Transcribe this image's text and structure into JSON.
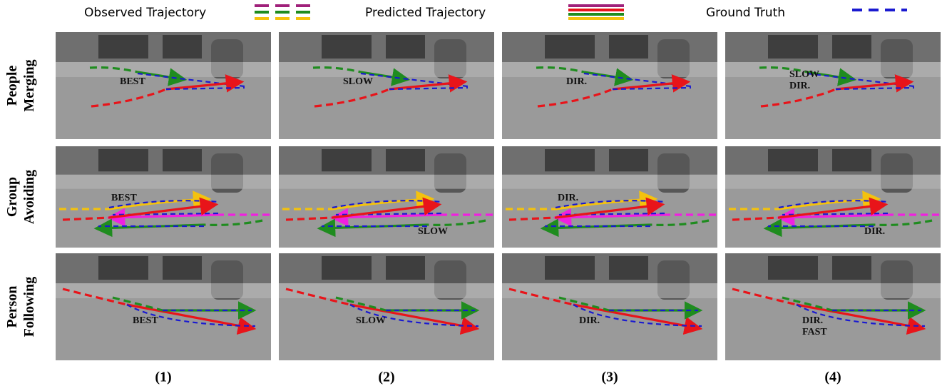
{
  "legend": [
    "Observed Trajectory",
    "Predicted Trajectory",
    "Ground Truth"
  ],
  "rows": [
    {
      "label": [
        "People",
        "Merging"
      ],
      "cells": [
        [
          "BEST"
        ],
        [
          "SLOW"
        ],
        [
          "DIR."
        ],
        [
          "SLOW",
          "DIR."
        ]
      ]
    },
    {
      "label": [
        "Group",
        "Avoiding"
      ],
      "cells": [
        [
          "BEST"
        ],
        [
          "SLOW"
        ],
        [
          "DIR."
        ],
        [
          "DIR."
        ]
      ]
    },
    {
      "label": [
        "Person",
        "Following"
      ],
      "cells": [
        [
          "BEST"
        ],
        [
          "SLOW"
        ],
        [
          "DIR."
        ],
        [
          "DIR.",
          "FAST"
        ]
      ]
    }
  ],
  "columns": [
    "(1)",
    "(2)",
    "(3)",
    "(4)"
  ]
}
